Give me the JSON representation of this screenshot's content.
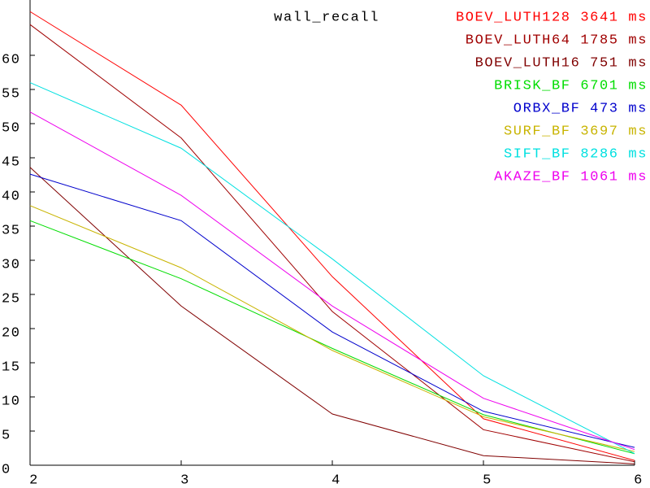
{
  "chart_data": {
    "type": "line",
    "title": "wall_recall",
    "x": [
      2,
      3,
      4,
      5,
      6
    ],
    "xlim": [
      2,
      6
    ],
    "xticks": [
      2,
      3,
      4,
      5,
      6
    ],
    "ylim": [
      0,
      68
    ],
    "yticks": [
      0,
      5,
      10,
      15,
      20,
      25,
      30,
      35,
      40,
      45,
      50,
      55,
      60
    ],
    "series": [
      {
        "name": "BOEV_LUTH128 3641 ms",
        "color": "#ff0000",
        "values": [
          66.4,
          52.7,
          27.6,
          6.8,
          0.7
        ]
      },
      {
        "name": "BOEV_LUTH64 1785 ms",
        "color": "#a00000",
        "values": [
          64.5,
          47.9,
          22.5,
          5.2,
          0.5
        ]
      },
      {
        "name": "BOEV_LUTH16 751 ms",
        "color": "#800000",
        "values": [
          43.6,
          23.3,
          7.5,
          1.4,
          0.2
        ]
      },
      {
        "name": "BRISK_BF 6701 ms",
        "color": "#00dd00",
        "values": [
          35.8,
          27.3,
          17.1,
          7.4,
          1.7
        ]
      },
      {
        "name": "ORBX_BF 473 ms",
        "color": "#0000cc",
        "values": [
          42.6,
          35.8,
          19.5,
          7.9,
          2.6
        ]
      },
      {
        "name": "SURF_BF 3697 ms",
        "color": "#c8b400",
        "values": [
          38.0,
          28.9,
          16.8,
          7.1,
          2.0
        ]
      },
      {
        "name": "SIFT_BF 8286 ms",
        "color": "#00e0e0",
        "values": [
          56.0,
          46.4,
          30.2,
          13.1,
          1.7
        ]
      },
      {
        "name": "AKAZE_BF 1061 ms",
        "color": "#ee00ee",
        "values": [
          51.7,
          39.5,
          23.3,
          9.8,
          2.3
        ]
      }
    ]
  }
}
